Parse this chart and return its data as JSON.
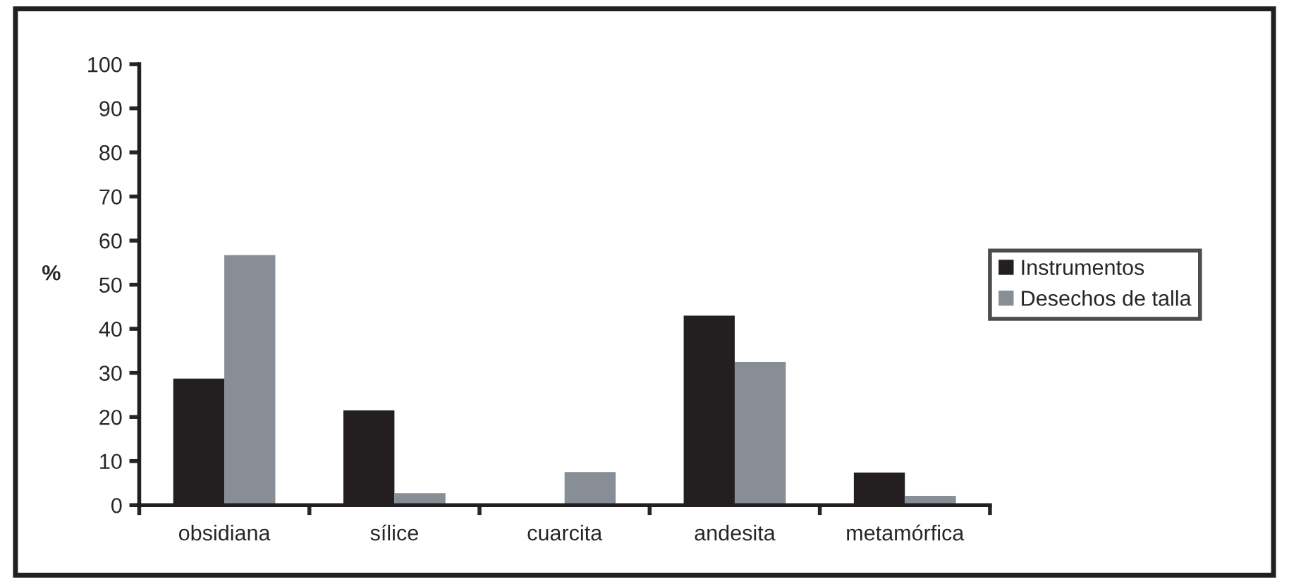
{
  "chart_data": {
    "type": "bar",
    "ylabel": "%",
    "categories": [
      "obsidiana",
      "sílice",
      "cuarcita",
      "andesita",
      "metamórfica"
    ],
    "series": [
      {
        "name": "Instrumentos",
        "color": "#231f20",
        "values": [
          28.7,
          21.5,
          0,
          43,
          7.4
        ]
      },
      {
        "name": "Desechos de talla",
        "color": "#878e95",
        "values": [
          56.7,
          2.7,
          7.5,
          32.5,
          2.1
        ]
      }
    ],
    "ylim": [
      0,
      100
    ],
    "yticks": [
      0,
      10,
      20,
      30,
      40,
      50,
      60,
      70,
      80,
      90,
      100
    ],
    "grid": false,
    "legend": "right"
  }
}
